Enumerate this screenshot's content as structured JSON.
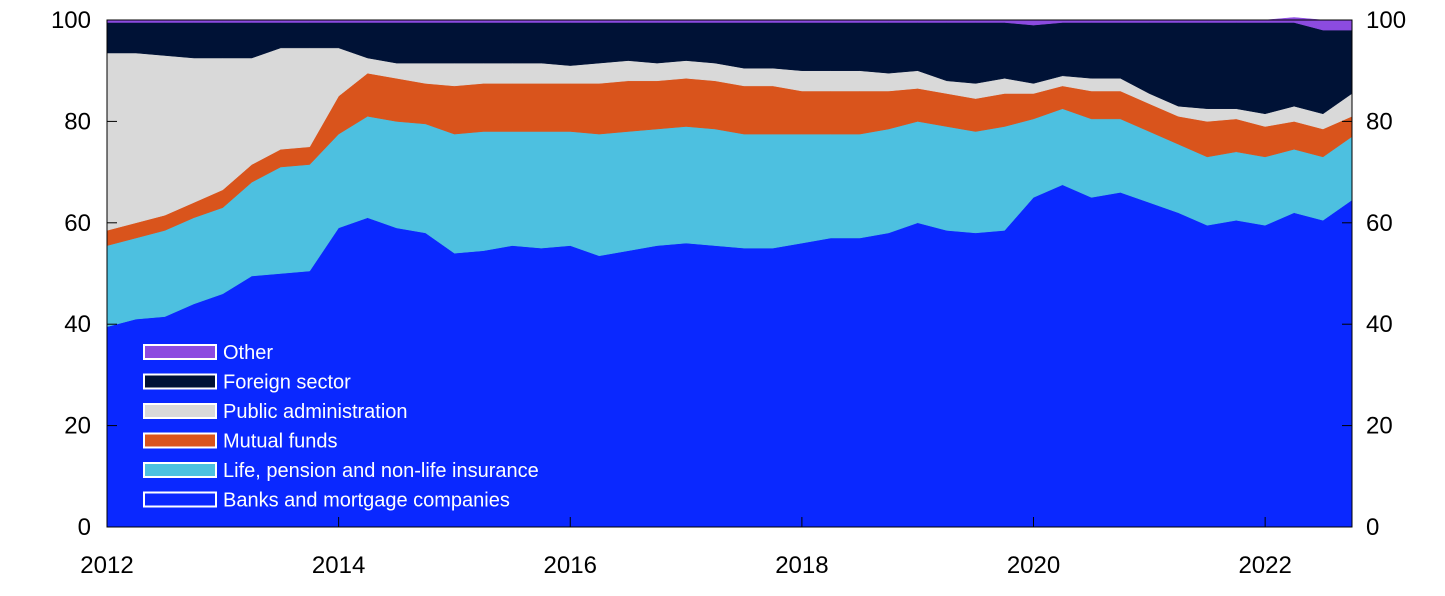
{
  "chart_data": {
    "type": "area",
    "stacked": true,
    "title": "",
    "xlabel": "",
    "ylabel": "",
    "ylim": [
      0,
      100
    ],
    "xlim": [
      2012.0,
      2022.75
    ],
    "yticks": [
      "0",
      "20",
      "40",
      "60",
      "80",
      "100"
    ],
    "xticks": [
      "2012",
      "2014",
      "2016",
      "2018",
      "2020",
      "2022"
    ],
    "right_axis_mirror": true,
    "grid": false,
    "legend_position": "bottom-left, inside plot",
    "x": [
      2012.0,
      2012.25,
      2012.5,
      2012.75,
      2013.0,
      2013.25,
      2013.5,
      2013.75,
      2014.0,
      2014.25,
      2014.5,
      2014.75,
      2015.0,
      2015.25,
      2015.5,
      2015.75,
      2016.0,
      2016.25,
      2016.5,
      2016.75,
      2017.0,
      2017.25,
      2017.5,
      2017.75,
      2018.0,
      2018.25,
      2018.5,
      2018.75,
      2019.0,
      2019.25,
      2019.5,
      2019.75,
      2020.0,
      2020.25,
      2020.5,
      2020.75,
      2021.0,
      2021.25,
      2021.5,
      2021.75,
      2022.0,
      2022.25,
      2022.5,
      2022.75
    ],
    "series": [
      {
        "name": "Banks and mortgage companies",
        "color": "#0a28ff",
        "values": [
          39.5,
          41,
          41.5,
          44,
          46,
          49.5,
          50,
          50.5,
          59,
          61,
          59,
          58,
          54,
          54.5,
          55.5,
          55,
          55.5,
          53.5,
          54.5,
          55.5,
          56,
          55.5,
          55,
          55,
          56,
          57,
          57,
          58,
          60,
          58.5,
          58,
          58.5,
          65,
          67.5,
          65,
          66,
          64,
          62,
          59.5,
          60.5,
          59.5,
          62,
          60.5,
          64.5
        ]
      },
      {
        "name": "Life, pension and non-life insurance",
        "color": "#4dc0e0",
        "values": [
          16,
          16,
          17,
          17,
          17,
          18.5,
          21,
          21,
          18.5,
          20,
          21,
          21.5,
          23.5,
          23.5,
          22.5,
          23,
          22.5,
          24,
          23.5,
          23,
          23,
          23,
          22.5,
          22.5,
          21.5,
          20.5,
          20.5,
          20.5,
          20,
          20.5,
          20,
          20.5,
          15.5,
          15,
          15.5,
          14.5,
          14,
          13.5,
          13.5,
          13.5,
          13.5,
          12.5,
          12.5,
          12.5
        ]
      },
      {
        "name": "Mutual funds",
        "color": "#d9541c",
        "values": [
          3,
          3,
          3,
          3,
          3.5,
          3.5,
          3.5,
          3.5,
          7.5,
          8.5,
          8.5,
          8,
          9.5,
          9.5,
          9.5,
          9.5,
          9.5,
          10,
          10,
          9.5,
          9.5,
          9.5,
          9.5,
          9.5,
          8.5,
          8.5,
          8.5,
          7.5,
          6.5,
          6.5,
          6.5,
          6.5,
          5,
          4.5,
          5.5,
          5.5,
          5.5,
          5.5,
          7,
          6.5,
          6,
          5.5,
          5.5,
          4
        ]
      },
      {
        "name": "Public administration",
        "color": "#d9d9d9",
        "values": [
          35,
          33.5,
          31.5,
          28.5,
          26,
          21,
          20,
          19.5,
          9.5,
          3,
          3,
          4,
          4.5,
          4,
          4,
          4,
          3.5,
          4,
          4,
          3.5,
          3.5,
          3.5,
          3.5,
          3.5,
          4,
          4,
          4,
          3.5,
          3.5,
          2.5,
          3,
          3,
          2,
          2,
          2.5,
          2.5,
          2,
          2,
          2.5,
          2,
          2.5,
          3,
          3,
          4.5
        ]
      },
      {
        "name": "Foreign sector",
        "color": "#001236",
        "values": [
          6,
          6,
          6.5,
          7,
          7,
          7,
          5,
          5,
          5,
          7,
          8,
          8,
          8,
          8,
          8,
          8,
          8.5,
          8,
          7.5,
          8,
          7.5,
          8,
          9,
          9,
          9.5,
          9.5,
          9.5,
          10,
          9.5,
          11.5,
          12,
          11,
          11.5,
          10.5,
          11,
          11,
          14,
          16.5,
          17,
          17,
          18,
          16.5,
          16.5,
          12.5
        ]
      },
      {
        "name": "Other",
        "color": "#8c4be0",
        "values": [
          0.5,
          0.5,
          0.5,
          0.5,
          0.5,
          0.5,
          0.5,
          0.5,
          0.5,
          0.5,
          0.5,
          0.5,
          0.5,
          0.5,
          0.5,
          0.5,
          0.5,
          0.5,
          0.5,
          0.5,
          0.5,
          0.5,
          0.5,
          0.5,
          0.5,
          0.5,
          0.5,
          0.5,
          0.5,
          0.5,
          0.5,
          0.5,
          1,
          0.5,
          0.5,
          0.5,
          0.5,
          0.5,
          0.5,
          0.5,
          0.5,
          1,
          2,
          2
        ]
      }
    ]
  }
}
